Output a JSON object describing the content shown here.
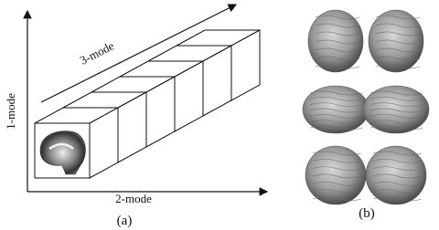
{
  "labels": {
    "mode3": "3-mode",
    "mode1": "1-mode",
    "mode2": "2-mode"
  },
  "captions": [
    "(a)",
    "(b)"
  ]
}
